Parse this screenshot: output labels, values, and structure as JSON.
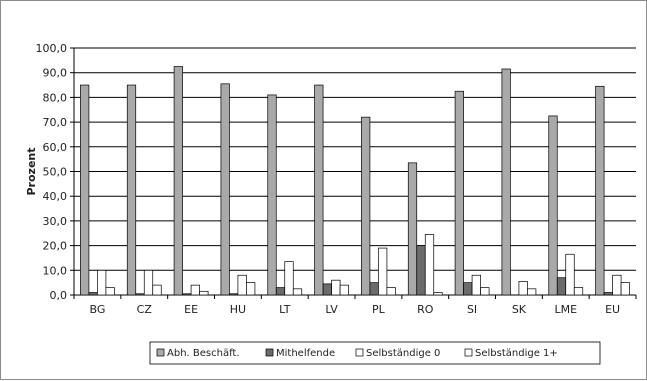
{
  "chart_data": {
    "type": "bar",
    "title": "",
    "xlabel": "",
    "ylabel": "Prozent",
    "ylim": [
      0,
      100
    ],
    "yticks": [
      "0,0",
      "10,0",
      "20,0",
      "30,0",
      "40,0",
      "50,0",
      "60,0",
      "70,0",
      "80,0",
      "90,0",
      "100,0"
    ],
    "grid": "horizontal",
    "legend_position": "bottom",
    "categories": [
      "BG",
      "CZ",
      "EE",
      "HU",
      "LT",
      "LV",
      "PL",
      "RO",
      "SI",
      "SK",
      "LME",
      "EU"
    ],
    "series": [
      {
        "name": "Abh. Beschäft.",
        "color": "#a9a9a9",
        "values": [
          85,
          85,
          92.5,
          85.5,
          81,
          85,
          72,
          53.5,
          82.5,
          91.5,
          72.5,
          84.5
        ]
      },
      {
        "name": "Mithelfende",
        "color": "#6b6b6b",
        "values": [
          1,
          0.5,
          0.5,
          0.5,
          3,
          4.5,
          5,
          20,
          5,
          0,
          7,
          1
        ]
      },
      {
        "name": "Selbständige 0",
        "color": "#ffffff",
        "values": [
          10,
          10,
          4,
          8,
          13.5,
          6,
          19,
          24.5,
          8,
          5.5,
          16.5,
          8
        ]
      },
      {
        "name": "Selbständige 1+",
        "color": "#ffffff",
        "values": [
          3,
          4,
          1.5,
          5,
          2.5,
          4,
          3,
          1,
          3,
          2.5,
          3,
          5
        ]
      }
    ]
  }
}
